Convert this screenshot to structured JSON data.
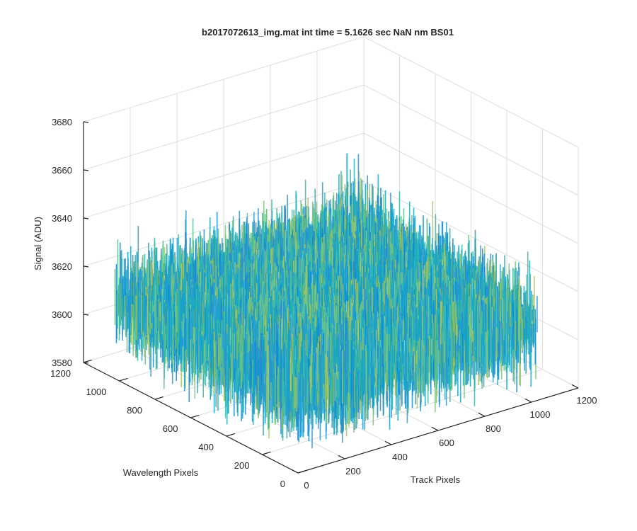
{
  "chart_data": {
    "type": "surface",
    "title": "b2017072613_img.mat int time = 5.1626 sec  NaN nm BS01",
    "xlabel": "Track Pixels",
    "ylabel": "Wavelength Pixels",
    "zlabel": "Signal (ADU)",
    "xlim": [
      0,
      1200
    ],
    "ylim": [
      0,
      1200
    ],
    "zlim": [
      3580,
      3680
    ],
    "xticks": [
      "0",
      "200",
      "400",
      "600",
      "800",
      "1000",
      "1200"
    ],
    "yticks": [
      "0",
      "200",
      "400",
      "600",
      "800",
      "1000",
      "1200"
    ],
    "zticks": [
      "3580",
      "3600",
      "3620",
      "3640",
      "3660",
      "3680"
    ],
    "grid": true,
    "surface": {
      "x_extent": [
        0,
        1024
      ],
      "y_extent": [
        0,
        1024
      ],
      "mean_signal": 3612,
      "noise_std": 6.5,
      "min_signal": 3585,
      "max_signal": 3654,
      "colormap": "parula"
    }
  }
}
